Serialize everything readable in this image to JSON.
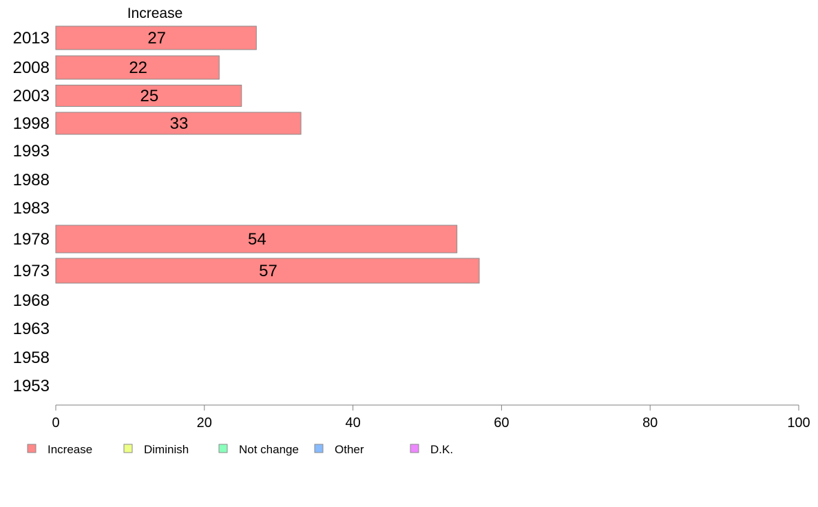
{
  "chart_data": {
    "type": "bar",
    "orientation": "horizontal",
    "stacked": true,
    "panel_title": "Increase",
    "categories": [
      "2013",
      "2008",
      "2003",
      "1998",
      "1993",
      "1988",
      "1983",
      "1978",
      "1973",
      "1968",
      "1963",
      "1958",
      "1953"
    ],
    "series": [
      {
        "name": "Increase",
        "color": "#ff8888",
        "values": [
          27,
          22,
          25,
          33,
          null,
          null,
          null,
          54,
          57,
          null,
          null,
          null,
          null
        ]
      }
    ],
    "xlim": [
      0,
      100
    ],
    "xticks": [
      0,
      20,
      40,
      60,
      80,
      100
    ],
    "xlabel": "",
    "ylabel": "",
    "grid": false,
    "legend": {
      "position": "bottom-left",
      "entries": [
        {
          "label": "Increase",
          "color": "#ff8888"
        },
        {
          "label": "Diminish",
          "color": "#eeff88"
        },
        {
          "label": "Not change",
          "color": "#88ffbb"
        },
        {
          "label": "Other",
          "color": "#88bbff"
        },
        {
          "label": "D.K.",
          "color": "#ee88ff"
        }
      ]
    }
  }
}
